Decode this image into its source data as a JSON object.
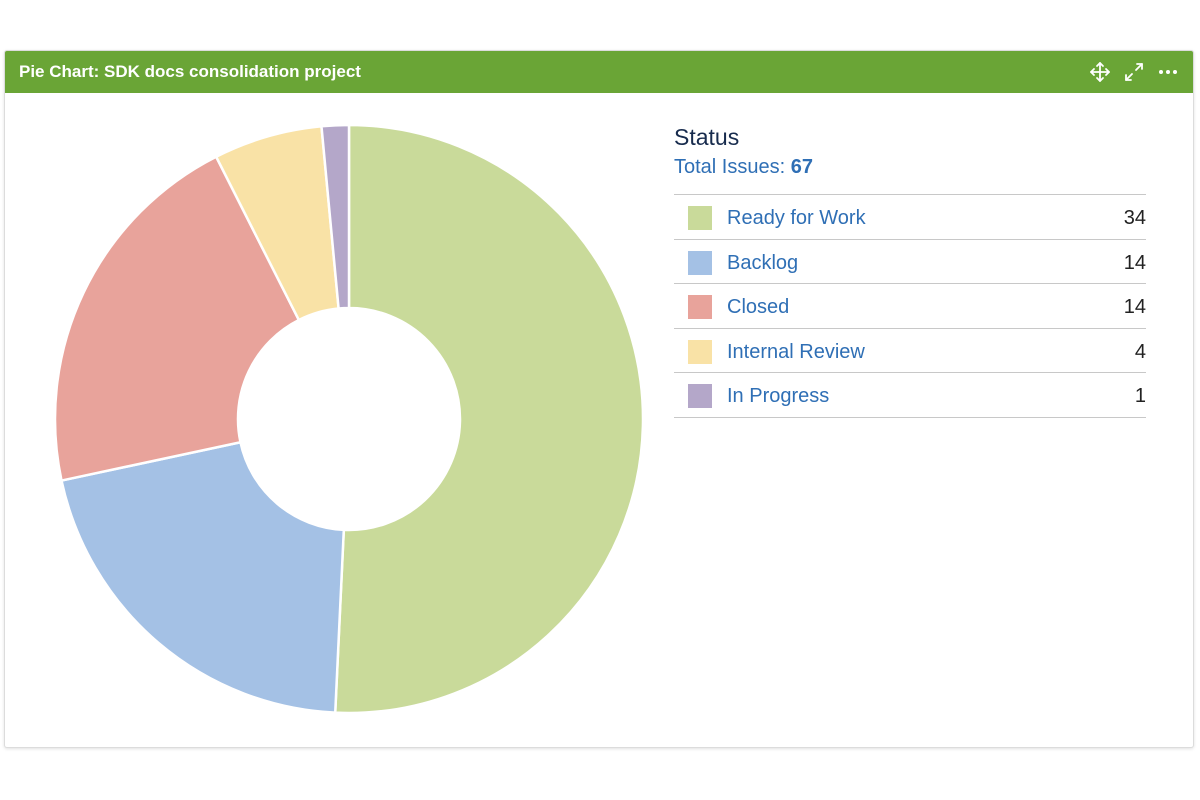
{
  "gadget": {
    "title": "Pie Chart: SDK docs consolidation project",
    "header_color": "#6aa536",
    "icons": [
      "move-icon",
      "expand-icon",
      "more-options-icon"
    ]
  },
  "legend": {
    "title": "Status",
    "total_label": "Total Issues:",
    "total_value": "67",
    "items": [
      {
        "label": "Ready for Work",
        "count": "34",
        "color": "#c9da9a"
      },
      {
        "label": "Backlog",
        "count": "14",
        "color": "#a4c1e5"
      },
      {
        "label": "Closed",
        "count": "14",
        "color": "#e8a39b"
      },
      {
        "label": "Internal Review",
        "count": "4",
        "color": "#f9e2a6"
      },
      {
        "label": "In Progress",
        "count": "1",
        "color": "#b4a7c9"
      }
    ]
  },
  "chart_data": {
    "type": "pie",
    "title": "Status",
    "categories": [
      "Ready for Work",
      "Backlog",
      "Closed",
      "Internal Review",
      "In Progress"
    ],
    "values": [
      34,
      14,
      14,
      4,
      1
    ],
    "colors": [
      "#c9da9a",
      "#a4c1e5",
      "#e8a39b",
      "#f9e2a6",
      "#b4a7c9"
    ],
    "donut": true,
    "legend": "right"
  }
}
